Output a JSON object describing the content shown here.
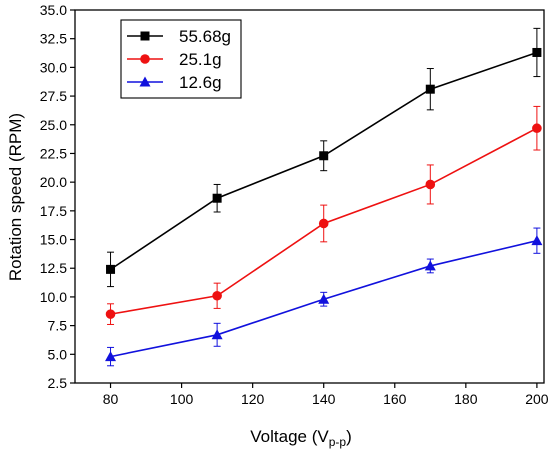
{
  "chart_data": {
    "type": "line",
    "title": "",
    "xlabel": "Voltage (V",
    "xlabel_subscript": "p-p",
    "xlabel_suffix": ")",
    "ylabel": "Rotation speed (RPM)",
    "xlim": [
      70,
      202
    ],
    "ylim": [
      2.5,
      35.0
    ],
    "x_ticks": [
      80,
      100,
      120,
      140,
      160,
      180,
      200
    ],
    "x_tick_labels": [
      "80",
      "100",
      "120",
      "140",
      "160",
      "180",
      "200"
    ],
    "y_ticks": [
      2.5,
      5.0,
      7.5,
      10.0,
      12.5,
      15.0,
      17.5,
      20.0,
      22.5,
      25.0,
      27.5,
      30.0,
      32.5,
      35.0
    ],
    "y_tick_labels": [
      "2.5",
      "5.0",
      "7.5",
      "10.0",
      "12.5",
      "15.0",
      "17.5",
      "20.0",
      "22.5",
      "25.0",
      "27.5",
      "30.0",
      "32.5",
      "35.0"
    ],
    "grid": false,
    "legend_position": "top-left",
    "x": [
      80,
      110,
      140,
      170,
      200
    ],
    "series": [
      {
        "name": "55.68g",
        "color": "#000000",
        "marker": "square",
        "values": [
          12.4,
          18.6,
          22.3,
          28.1,
          31.3
        ],
        "errors": [
          1.5,
          1.2,
          1.3,
          1.8,
          2.1
        ]
      },
      {
        "name": "25.1g",
        "color": "#ee1111",
        "marker": "circle",
        "values": [
          8.5,
          10.1,
          16.4,
          19.8,
          24.7
        ],
        "errors": [
          0.9,
          1.1,
          1.6,
          1.7,
          1.9
        ]
      },
      {
        "name": "12.6g",
        "color": "#1111dd",
        "marker": "triangle",
        "values": [
          4.8,
          6.7,
          9.8,
          12.7,
          14.9
        ],
        "errors": [
          0.8,
          1.0,
          0.6,
          0.6,
          1.1
        ]
      }
    ]
  }
}
